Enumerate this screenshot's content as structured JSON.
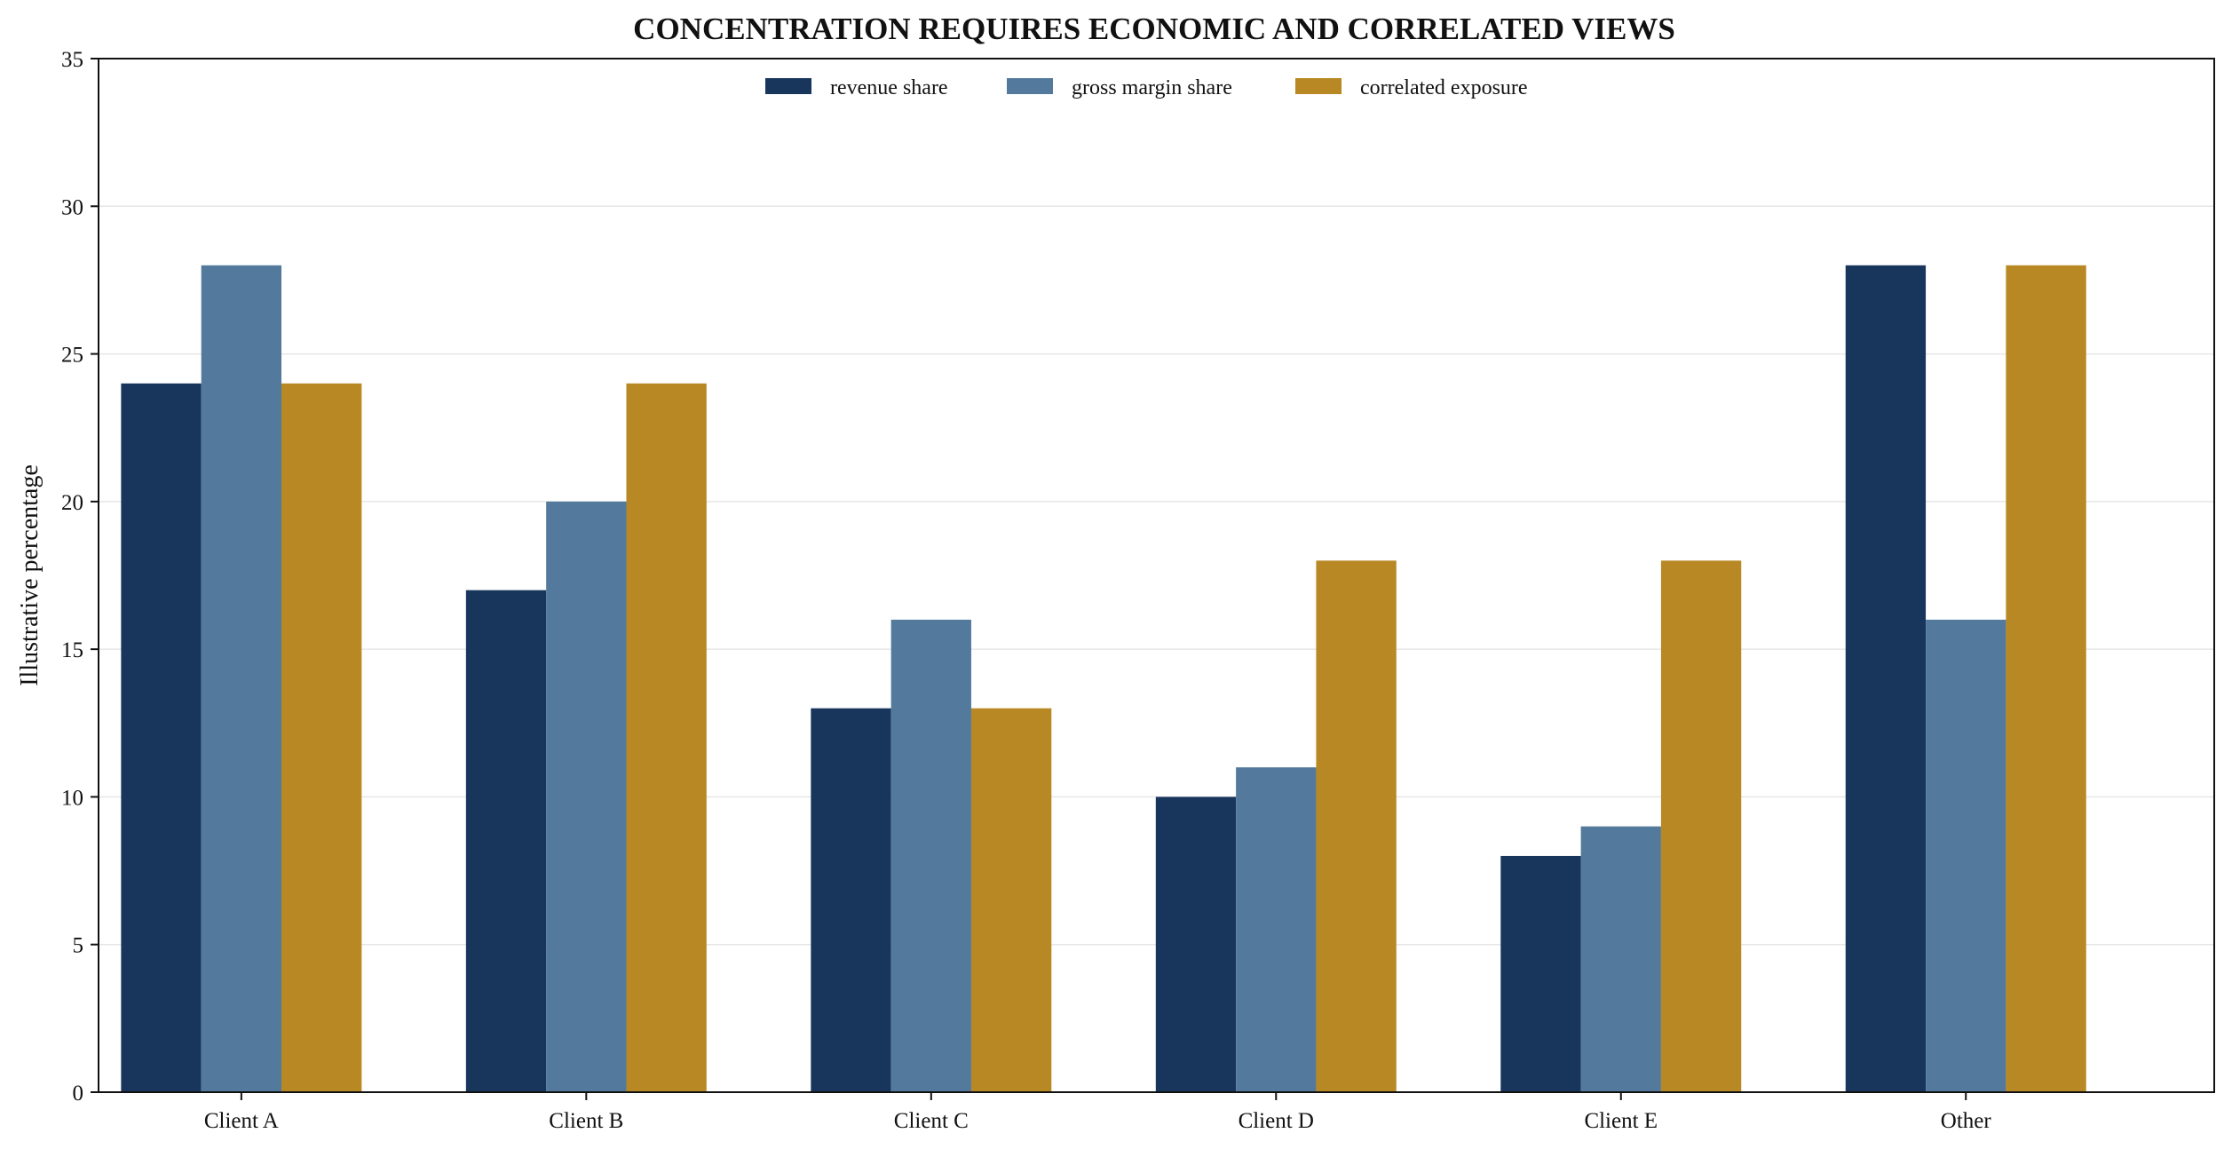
{
  "chart_data": {
    "type": "bar",
    "title": "CONCENTRATION REQUIRES ECONOMIC AND CORRELATED VIEWS",
    "xlabel": "",
    "ylabel": "Illustrative percentage",
    "ylim": [
      0,
      35
    ],
    "yticks": [
      0,
      5,
      10,
      15,
      20,
      25,
      30,
      35
    ],
    "ytick_labels": [
      "0",
      "5",
      "10",
      "15",
      "20",
      "25",
      "30",
      "35"
    ],
    "grid": "horizontal",
    "legend_position": "top-center",
    "categories": [
      "Client A",
      "Client B",
      "Client C",
      "Client D",
      "Client E",
      "Other"
    ],
    "series": [
      {
        "name": "revenue share",
        "color": "#18365c",
        "values": [
          24,
          17,
          13,
          10,
          8,
          28
        ]
      },
      {
        "name": "gross margin share",
        "color": "#53799c",
        "values": [
          28,
          20,
          16,
          11,
          9,
          16
        ]
      },
      {
        "name": "correlated exposure",
        "color": "#b78823",
        "values": [
          24,
          24,
          13,
          18,
          18,
          28
        ]
      }
    ],
    "title_color": "#1a3a63"
  }
}
